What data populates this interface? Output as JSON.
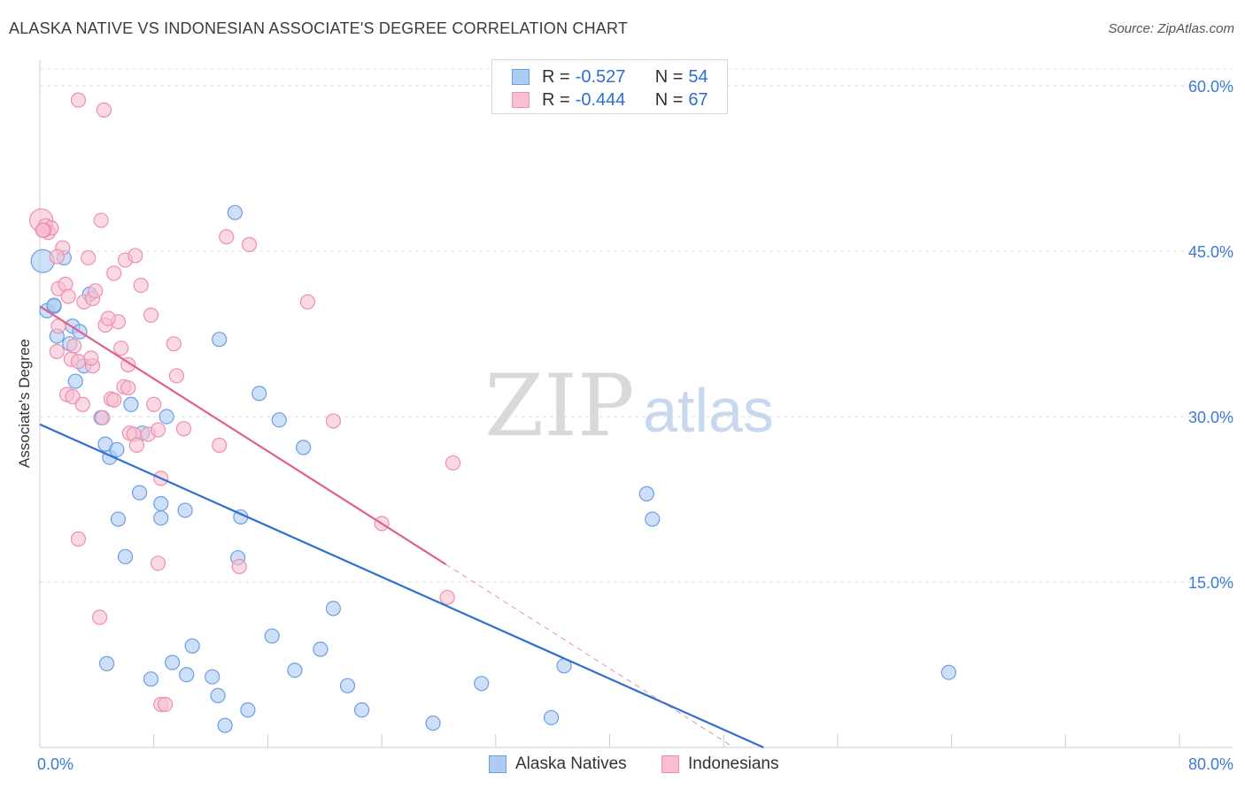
{
  "title": "ALASKA NATIVE VS INDONESIAN ASSOCIATE'S DEGREE CORRELATION CHART",
  "source": "Source: ZipAtlas.com",
  "watermark": {
    "zip": "ZIP",
    "atlas": "atlas"
  },
  "legend": {
    "r_label": "R =",
    "n_label": "N =",
    "rows": [
      {
        "r": "-0.527",
        "n": "54"
      },
      {
        "r": "-0.444",
        "n": "67"
      }
    ]
  },
  "colors": {
    "blue_fill": "#aecbf2",
    "blue_stroke": "#6b9ee3",
    "blue_line": "#2f6fd0",
    "pink_fill": "#f7bfd1",
    "pink_stroke": "#ee8fb0",
    "pink_line": "#e0608f",
    "tick_color": "#3b7bd6"
  },
  "chart_data": {
    "type": "scatter",
    "title": "ALASKA NATIVE VS INDONESIAN ASSOCIATE'S DEGREE CORRELATION CHART",
    "xlabel": "",
    "ylabel": "Associate's Degree",
    "xlim": [
      0,
      80
    ],
    "ylim": [
      0,
      62
    ],
    "x_tick_labels": [
      "0.0%",
      "80.0%"
    ],
    "y_ticks": [
      15,
      30,
      45,
      60
    ],
    "y_tick_labels": [
      "15.0%",
      "30.0%",
      "45.0%",
      "60.0%"
    ],
    "grid": true,
    "legend_position": "bottom-center",
    "series": [
      {
        "name": "Alaska Natives",
        "r": -0.527,
        "n": 54,
        "trend": {
          "x1": 0,
          "y1": 29.3,
          "x2": 50.8,
          "y2": 0
        },
        "points": [
          [
            0.2,
            44.1
          ],
          [
            0.5,
            39.6
          ],
          [
            1.2,
            37.3
          ],
          [
            1.7,
            44.4
          ],
          [
            1.0,
            40.0
          ],
          [
            2.1,
            36.6
          ],
          [
            2.3,
            38.2
          ],
          [
            3.5,
            41.1
          ],
          [
            2.8,
            37.7
          ],
          [
            3.1,
            34.6
          ],
          [
            2.5,
            33.2
          ],
          [
            4.3,
            29.9
          ],
          [
            4.6,
            27.5
          ],
          [
            4.9,
            26.3
          ],
          [
            5.4,
            27.0
          ],
          [
            6.4,
            31.1
          ],
          [
            7.2,
            28.5
          ],
          [
            8.9,
            30.0
          ],
          [
            7.0,
            23.1
          ],
          [
            5.5,
            20.7
          ],
          [
            8.5,
            22.1
          ],
          [
            8.5,
            20.8
          ],
          [
            10.2,
            21.5
          ],
          [
            6.0,
            17.3
          ],
          [
            4.7,
            7.6
          ],
          [
            7.8,
            6.2
          ],
          [
            9.3,
            7.7
          ],
          [
            10.3,
            6.6
          ],
          [
            10.7,
            9.2
          ],
          [
            12.1,
            6.4
          ],
          [
            12.5,
            4.7
          ],
          [
            13.0,
            2.0
          ],
          [
            13.7,
            48.5
          ],
          [
            12.6,
            37.0
          ],
          [
            14.1,
            20.9
          ],
          [
            13.9,
            17.2
          ],
          [
            14.6,
            3.4
          ],
          [
            15.4,
            32.1
          ],
          [
            16.3,
            10.1
          ],
          [
            16.8,
            29.7
          ],
          [
            17.9,
            7.0
          ],
          [
            18.5,
            27.2
          ],
          [
            19.7,
            8.9
          ],
          [
            20.6,
            12.6
          ],
          [
            21.6,
            5.6
          ],
          [
            22.6,
            3.4
          ],
          [
            27.6,
            2.2
          ],
          [
            31.0,
            5.8
          ],
          [
            35.9,
            2.7
          ],
          [
            36.8,
            7.4
          ],
          [
            42.6,
            23.0
          ],
          [
            43.0,
            20.7
          ],
          [
            63.8,
            6.8
          ],
          [
            1.0,
            40.1
          ]
        ]
      },
      {
        "name": "Indonesians",
        "r": -0.444,
        "n": 67,
        "trend": {
          "x1": 0,
          "y1": 40.0,
          "x2": 28.5,
          "y2": 16.6
        },
        "points": [
          [
            0.1,
            47.8
          ],
          [
            0.4,
            47.3
          ],
          [
            0.6,
            46.7
          ],
          [
            0.8,
            47.1
          ],
          [
            0.3,
            46.9
          ],
          [
            2.7,
            58.7
          ],
          [
            4.5,
            57.8
          ],
          [
            4.3,
            47.8
          ],
          [
            1.6,
            45.3
          ],
          [
            1.2,
            44.5
          ],
          [
            3.4,
            44.4
          ],
          [
            6.0,
            44.2
          ],
          [
            5.2,
            43.0
          ],
          [
            6.7,
            44.6
          ],
          [
            1.3,
            41.6
          ],
          [
            1.8,
            42.0
          ],
          [
            2.0,
            40.9
          ],
          [
            3.1,
            40.4
          ],
          [
            3.7,
            40.7
          ],
          [
            3.9,
            41.4
          ],
          [
            7.1,
            41.9
          ],
          [
            5.5,
            38.6
          ],
          [
            7.8,
            39.2
          ],
          [
            4.6,
            38.3
          ],
          [
            4.8,
            38.9
          ],
          [
            1.3,
            38.2
          ],
          [
            2.4,
            36.4
          ],
          [
            1.2,
            35.9
          ],
          [
            2.2,
            35.2
          ],
          [
            2.7,
            35.0
          ],
          [
            3.7,
            34.6
          ],
          [
            3.6,
            35.3
          ],
          [
            5.7,
            36.2
          ],
          [
            6.2,
            34.7
          ],
          [
            9.4,
            36.6
          ],
          [
            9.6,
            33.7
          ],
          [
            1.9,
            32.0
          ],
          [
            2.3,
            31.8
          ],
          [
            3.0,
            31.1
          ],
          [
            5.0,
            31.6
          ],
          [
            5.2,
            31.5
          ],
          [
            5.9,
            32.7
          ],
          [
            6.2,
            32.6
          ],
          [
            8.0,
            31.1
          ],
          [
            4.4,
            29.9
          ],
          [
            6.3,
            28.5
          ],
          [
            6.6,
            28.4
          ],
          [
            7.6,
            28.4
          ],
          [
            8.3,
            28.8
          ],
          [
            6.8,
            27.4
          ],
          [
            10.1,
            28.9
          ],
          [
            12.6,
            27.4
          ],
          [
            8.5,
            24.4
          ],
          [
            2.7,
            18.9
          ],
          [
            8.3,
            16.7
          ],
          [
            13.1,
            46.3
          ],
          [
            14.7,
            45.6
          ],
          [
            18.8,
            40.4
          ],
          [
            20.6,
            29.6
          ],
          [
            14.0,
            16.4
          ],
          [
            4.2,
            11.8
          ],
          [
            8.5,
            3.9
          ],
          [
            8.8,
            3.9
          ],
          [
            29.0,
            25.8
          ],
          [
            24.0,
            20.3
          ],
          [
            28.6,
            13.6
          ],
          [
            0.2,
            46.9
          ]
        ]
      }
    ]
  },
  "bottom_legend": [
    "Alaska Natives",
    "Indonesians"
  ]
}
